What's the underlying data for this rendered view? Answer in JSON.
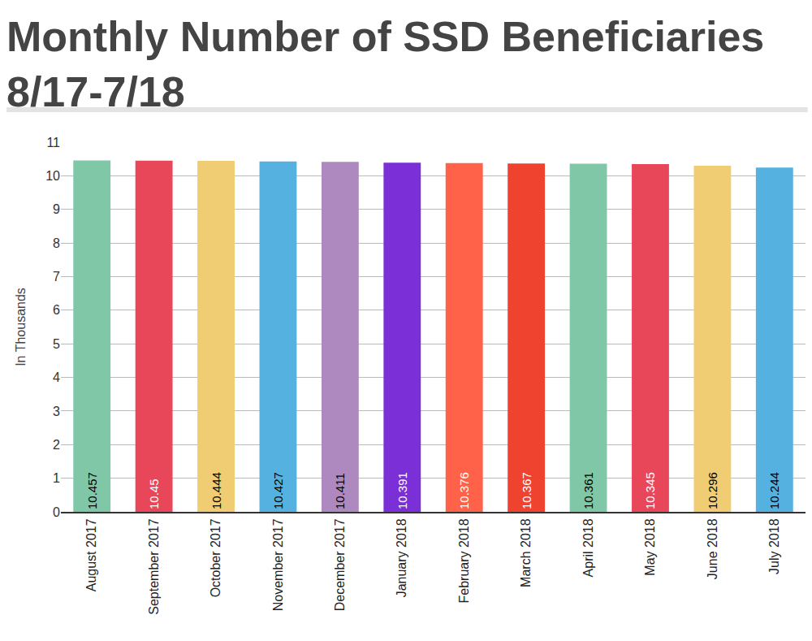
{
  "chart_data": {
    "type": "bar",
    "title": "Monthly Number of SSD Beneficiaries\n8/17-7/18",
    "y_label": "In Thousands",
    "categories": [
      "August 2017",
      "September 2017",
      "October 2017",
      "November 2017",
      "December 2017",
      "January 2018",
      "February 2018",
      "March 2018",
      "April 2018",
      "May 2018",
      "June 2018",
      "July 2018"
    ],
    "values": [
      10.457,
      10.45,
      10.444,
      10.427,
      10.411,
      10.391,
      10.376,
      10.367,
      10.361,
      10.345,
      10.296,
      10.244
    ],
    "colors": [
      "#80c7a8",
      "#e8475a",
      "#f0cd73",
      "#55b2e0",
      "#ae89c0",
      "#7b2fd6",
      "#ff6248",
      "#ef4330",
      "#80c7a8",
      "#e8475a",
      "#f0cd73",
      "#55b2e0"
    ],
    "ylim": [
      0,
      11
    ],
    "yticks": [
      0,
      1,
      2,
      3,
      4,
      5,
      6,
      7,
      8,
      9,
      10,
      11
    ],
    "grid": true,
    "data_labels": true
  }
}
